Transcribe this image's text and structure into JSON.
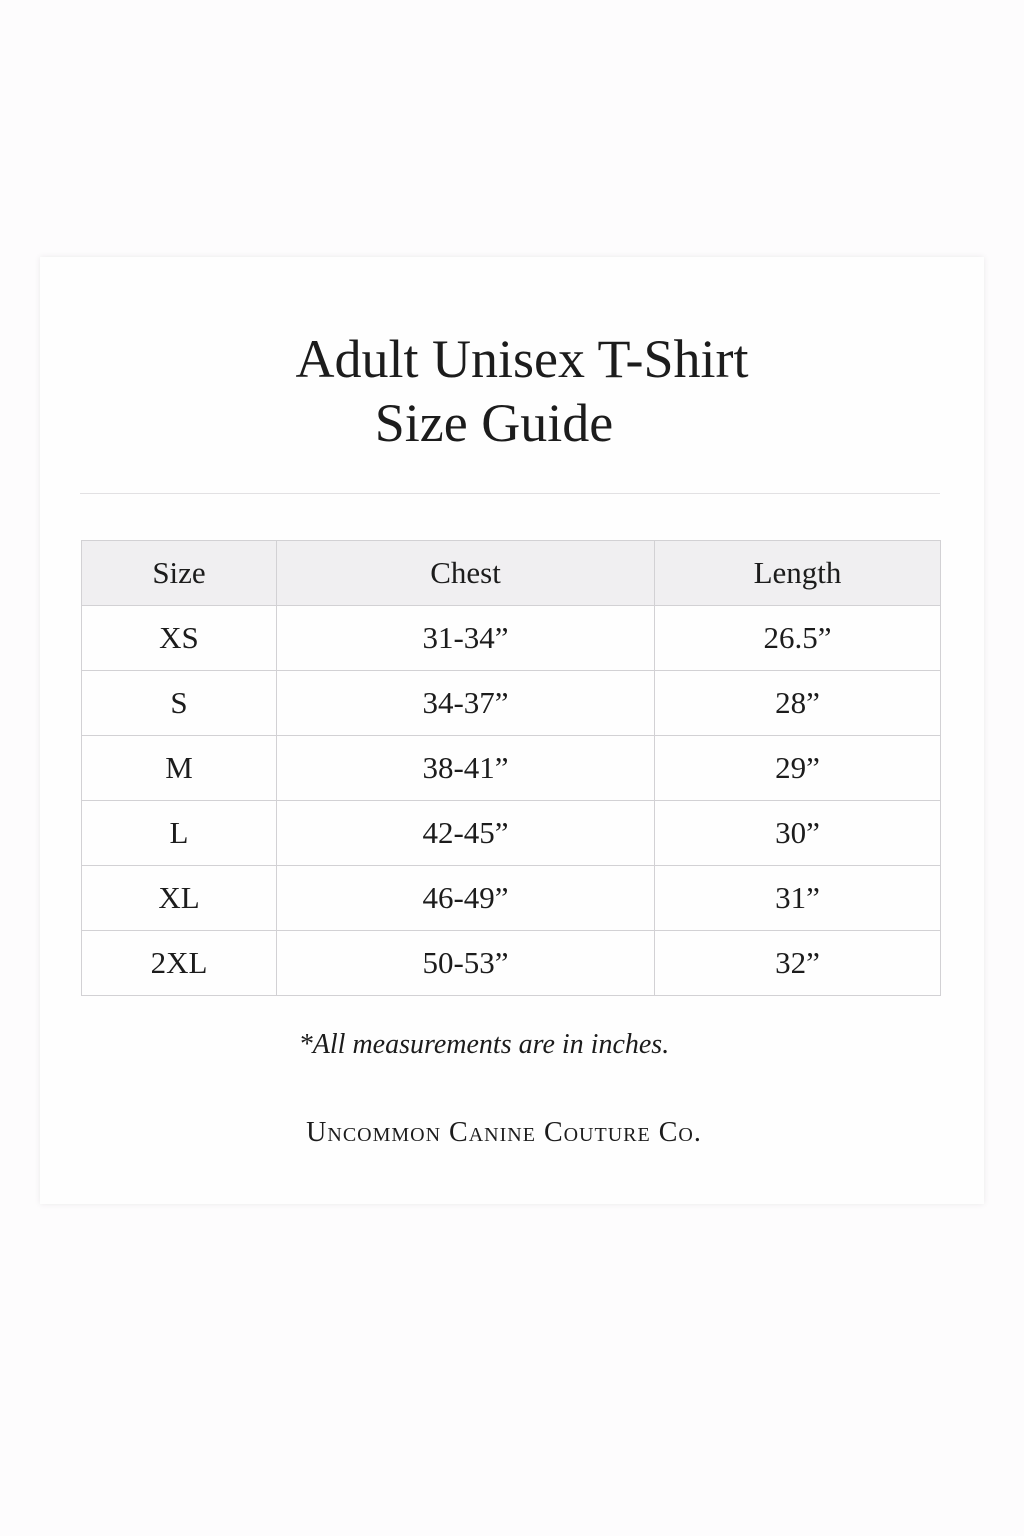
{
  "title_line1": "Adult Unisex T-Shirt",
  "title_line2": "Size Guide",
  "table": {
    "headers": [
      "Size",
      "Chest",
      "Length"
    ],
    "rows": [
      [
        "XS",
        "31-34”",
        "26.5”"
      ],
      [
        "S",
        "34-37”",
        "28”"
      ],
      [
        "M",
        "38-41”",
        "29”"
      ],
      [
        "L",
        "42-45”",
        "30”"
      ],
      [
        "XL",
        "46-49”",
        "31”"
      ],
      [
        "2XL",
        "50-53”",
        "32”"
      ]
    ]
  },
  "footnote": "*All measurements are in inches.",
  "brand": "Uncommon Canine Couture Co."
}
